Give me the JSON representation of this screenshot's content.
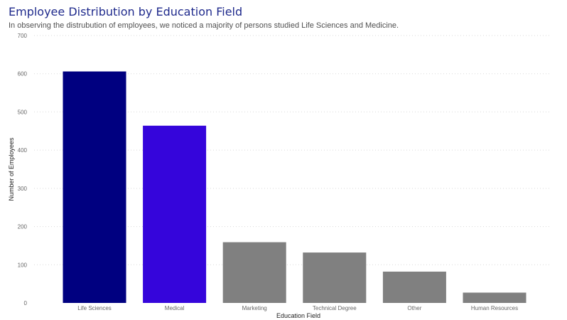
{
  "header": {
    "title": "Employee Distribution by Education Field",
    "subtitle": "In observing the distrubution of employees, we noticed a majority of persons studied Life Sciences and Medicine."
  },
  "chart_data": {
    "type": "bar",
    "categories": [
      "Life Sciences",
      "Medical",
      "Marketing",
      "Technical Degree",
      "Other",
      "Human Resources"
    ],
    "values": [
      606,
      464,
      159,
      132,
      82,
      27
    ],
    "bar_colors": [
      "#000080",
      "#3505db",
      "#808080",
      "#808080",
      "#808080",
      "#808080"
    ],
    "xlabel": "Education Field",
    "ylabel": "Number of Employees",
    "ylim": [
      0,
      700
    ],
    "yticks": [
      0,
      100,
      200,
      300,
      400,
      500,
      600,
      700
    ],
    "grid": true
  }
}
